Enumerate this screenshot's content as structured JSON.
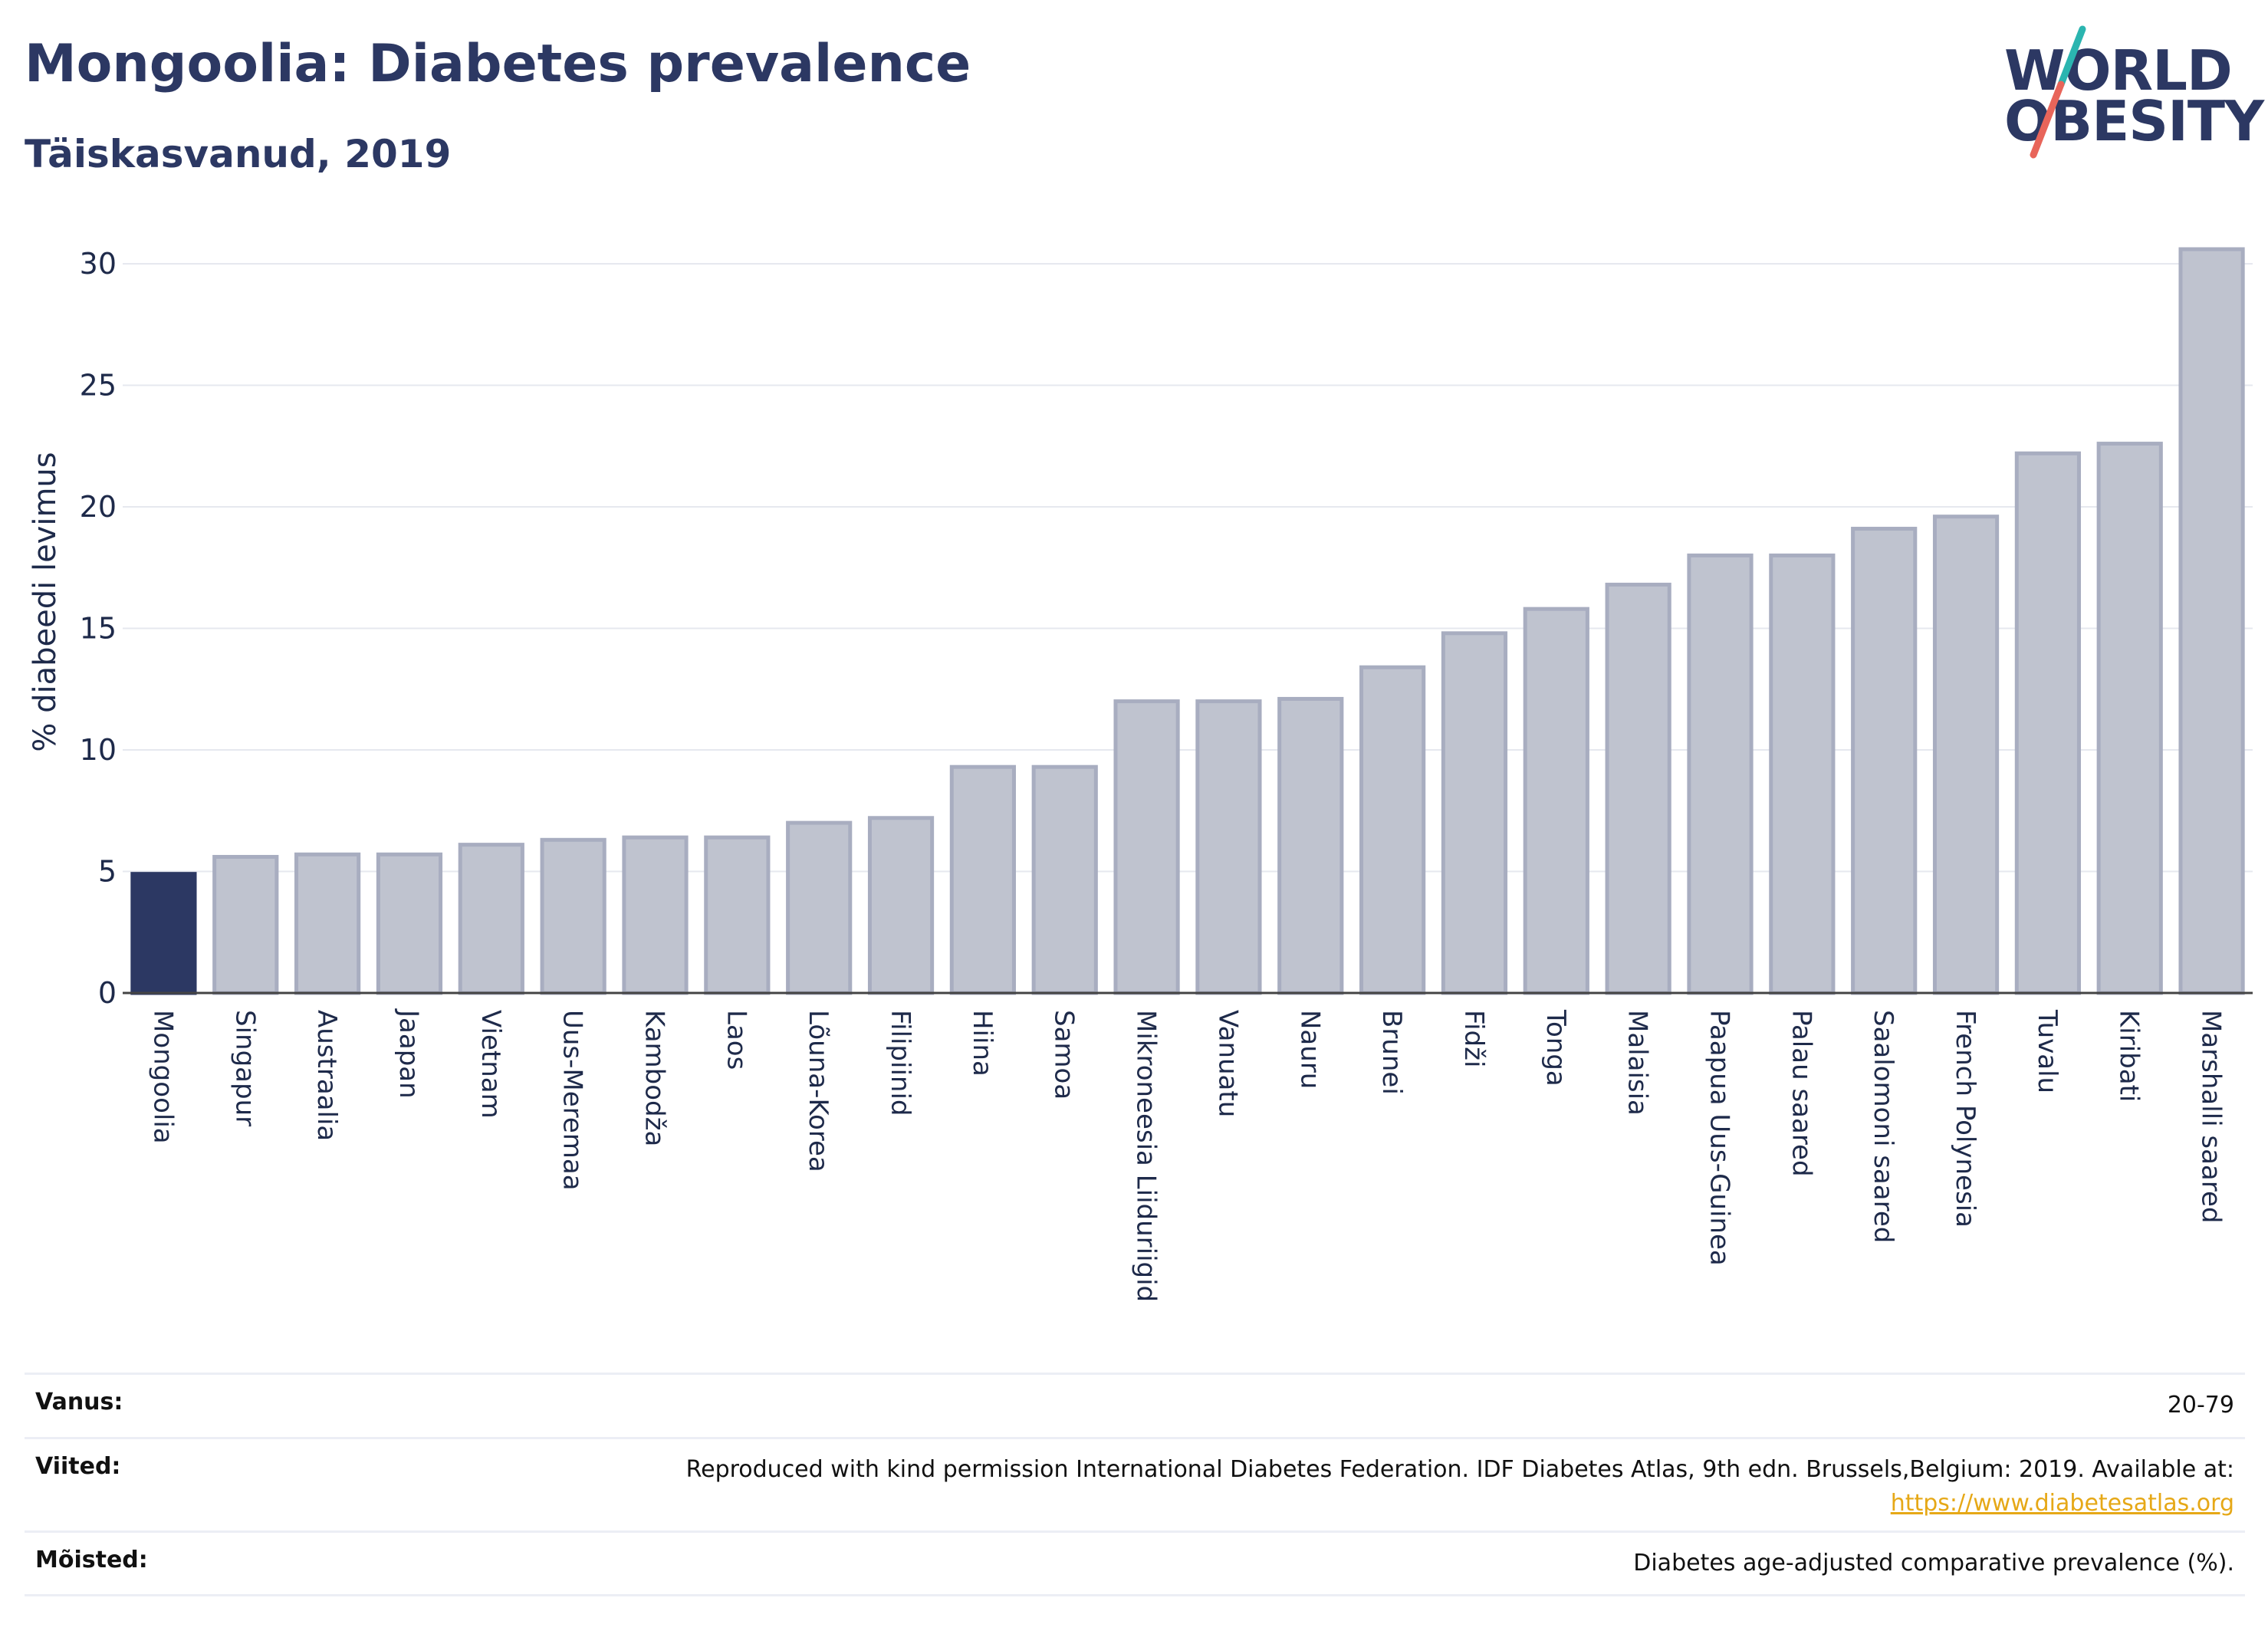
{
  "header": {
    "title": "Mongoolia: Diabetes prevalence",
    "subtitle": "Täiskasvanud, 2019"
  },
  "logo": {
    "line1": "WORLD",
    "line2": "OBESITY",
    "colors": {
      "text": "#2c3863",
      "slash_top": "#2bb5b0",
      "slash_bottom": "#e8655a"
    }
  },
  "chart_data": {
    "type": "bar",
    "title": "",
    "xlabel": "",
    "ylabel": "% diabeedi levimus",
    "ylim": [
      0,
      32
    ],
    "yticks": [
      0,
      5,
      10,
      15,
      20,
      25,
      30
    ],
    "grid": true,
    "highlight": "Mongoolia",
    "colors": {
      "highlight": "#2c3863",
      "bar": "#bfc3cf",
      "bar_outline": "#a8adc0"
    },
    "categories": [
      "Mongoolia",
      "Singapur",
      "Austraalia",
      "Jaapan",
      "Vietnam",
      "Uus-Meremaa",
      "Kambodža",
      "Laos",
      "Lõuna-Korea",
      "Filipiinid",
      "Hiina",
      "Samoa",
      "Mikroneesia Liiduriigid",
      "Vanuatu",
      "Nauru",
      "Brunei",
      "Fidži",
      "Tonga",
      "Malaisia",
      "Paapua Uus-Guinea",
      "Palau saared",
      "Saalomoni saared",
      "French Polynesia",
      "Tuvalu",
      "Kiribati",
      "Marshalli saared"
    ],
    "values": [
      4.9,
      5.6,
      5.7,
      5.7,
      6.1,
      6.3,
      6.4,
      6.4,
      7.0,
      7.2,
      9.3,
      9.3,
      12.0,
      12.0,
      12.1,
      13.4,
      14.8,
      15.8,
      16.8,
      18.0,
      18.0,
      19.1,
      19.6,
      22.2,
      22.6,
      30.6
    ]
  },
  "info": {
    "age_label": "Vanus:",
    "age_value": "20-79",
    "refs_label": "Viited:",
    "refs_value": "Reproduced with kind permission International Diabetes Federation. IDF Diabetes Atlas, 9th edn. Brussels,Belgium: 2019. Available at:",
    "refs_link": "https://www.diabetesatlas.org",
    "defs_label": "Mõisted:",
    "defs_value": "Diabetes age-adjusted comparative prevalence (%)."
  }
}
